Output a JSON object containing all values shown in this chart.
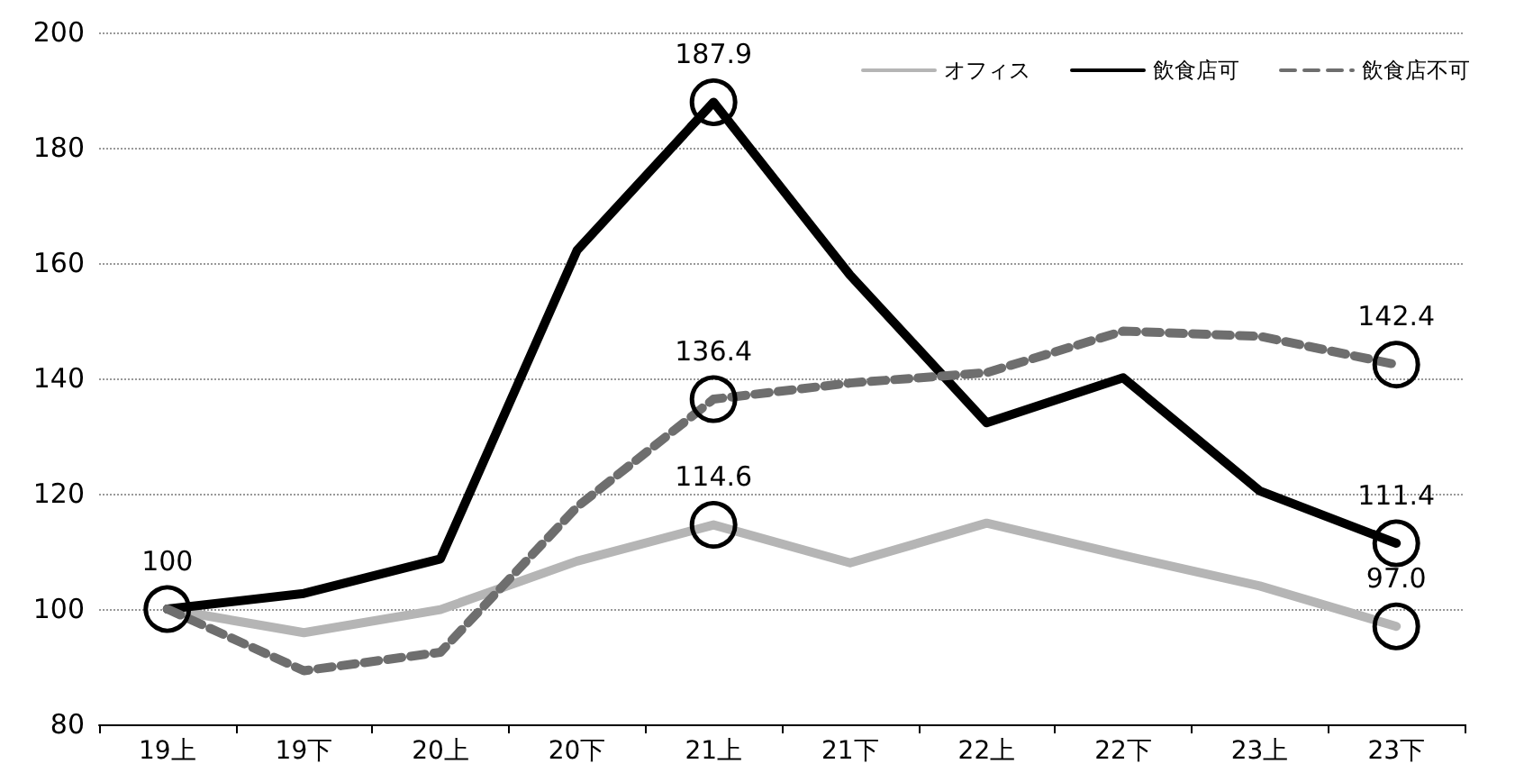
{
  "chart_data": {
    "type": "line",
    "categories": [
      "19上",
      "19下",
      "20上",
      "20下",
      "21上",
      "21下",
      "22上",
      "22下",
      "23上",
      "23下"
    ],
    "series": [
      {
        "name": "オフィス",
        "color": "#b5b5b5",
        "line_style": "solid",
        "values": [
          100,
          95.9,
          99.9,
          108.3,
          114.6,
          108,
          114.9,
          109.3,
          104,
          97.0
        ],
        "value_labels": [
          null,
          null,
          null,
          null,
          "114.6",
          null,
          null,
          null,
          null,
          "97.0"
        ]
      },
      {
        "name": "飲食店可",
        "color": "#000000",
        "line_style": "solid",
        "values": [
          100,
          102.7,
          108.7,
          162.2,
          187.9,
          157.9,
          132.3,
          140.1,
          120.5,
          111.4
        ],
        "value_labels": [
          "100",
          null,
          null,
          null,
          "187.9",
          null,
          null,
          null,
          null,
          "111.4"
        ]
      },
      {
        "name": "飲食店不可",
        "color": "#6e6e6e",
        "line_style": "dashed",
        "values": [
          100,
          89.3,
          92.5,
          117.7,
          136.4,
          139.2,
          141,
          148.2,
          147.3,
          142.4
        ],
        "value_labels": [
          null,
          null,
          null,
          null,
          "136.4",
          null,
          null,
          null,
          null,
          "142.4"
        ]
      }
    ],
    "ylim": [
      80,
      200
    ],
    "yticks": [
      80,
      100,
      120,
      140,
      160,
      180,
      200
    ],
    "grid": "y",
    "legend": "top right"
  }
}
